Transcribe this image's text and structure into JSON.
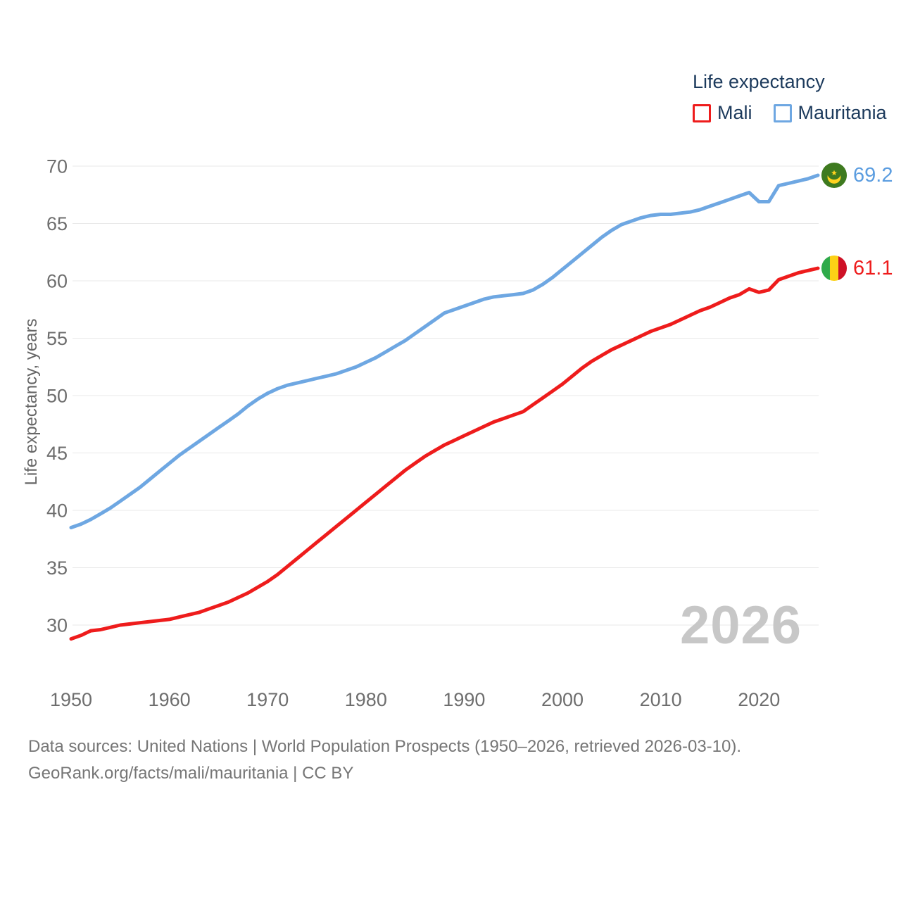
{
  "legend": {
    "title": "Life expectancy",
    "items": [
      {
        "label": "Mali",
        "color": "#ee1c1c"
      },
      {
        "label": "Mauritania",
        "color": "#6ea7e2"
      }
    ]
  },
  "watermark": "2026",
  "end_labels": [
    {
      "series": "Mauritania",
      "value": "69.2",
      "color": "#5b9de0",
      "flag_icon": "mauritania-flag-icon"
    },
    {
      "series": "Mali",
      "value": "61.1",
      "color": "#ee1c1c",
      "flag_icon": "mali-flag-icon"
    }
  ],
  "footer": {
    "line1": "Data sources: United Nations | World Population Prospects (1950–2026, retrieved 2026-03-10).",
    "line2": "GeoRank.org/facts/mali/mauritania | CC BY"
  },
  "flag_colors": {
    "mali": {
      "green": "#2faa4a",
      "yellow": "#fcd116",
      "red": "#ce1126"
    },
    "mauritania": {
      "green": "#3e7a1f",
      "gold": "#ffd21e"
    }
  },
  "chart_data": {
    "type": "line",
    "title": "Life expectancy",
    "xlabel": "",
    "ylabel": "Life expectancy, years",
    "x_years": {
      "start": 1950,
      "end": 2026,
      "step": 1
    },
    "xticks": [
      1950,
      1960,
      1970,
      1980,
      1990,
      2000,
      2010,
      2020
    ],
    "yticks": [
      30,
      35,
      40,
      45,
      50,
      55,
      60,
      65,
      70
    ],
    "ylim": [
      30,
      70
    ],
    "grid": "horizontal",
    "legend_position": "top-right",
    "series": [
      {
        "name": "Mauritania",
        "color": "#6ea7e2",
        "end_value": 69.2,
        "values": [
          38.5,
          38.8,
          39.2,
          39.7,
          40.2,
          40.8,
          41.4,
          42.0,
          42.7,
          43.4,
          44.1,
          44.8,
          45.4,
          46.0,
          46.6,
          47.2,
          47.8,
          48.4,
          49.1,
          49.7,
          50.2,
          50.6,
          50.9,
          51.1,
          51.3,
          51.5,
          51.7,
          51.9,
          52.2,
          52.5,
          52.9,
          53.3,
          53.8,
          54.3,
          54.8,
          55.4,
          56.0,
          56.6,
          57.2,
          57.5,
          57.8,
          58.1,
          58.4,
          58.6,
          58.7,
          58.8,
          58.9,
          59.2,
          59.7,
          60.3,
          61.0,
          61.7,
          62.4,
          63.1,
          63.8,
          64.4,
          64.9,
          65.2,
          65.5,
          65.7,
          65.8,
          65.8,
          65.9,
          66.0,
          66.2,
          66.5,
          66.8,
          67.1,
          67.4,
          67.7,
          66.9,
          66.9,
          68.3,
          68.5,
          68.7,
          68.9,
          69.2
        ]
      },
      {
        "name": "Mali",
        "color": "#ee1c1c",
        "end_value": 61.1,
        "values": [
          28.8,
          29.1,
          29.5,
          29.6,
          29.8,
          30.0,
          30.1,
          30.2,
          30.3,
          30.4,
          30.5,
          30.7,
          30.9,
          31.1,
          31.4,
          31.7,
          32.0,
          32.4,
          32.8,
          33.3,
          33.8,
          34.4,
          35.1,
          35.8,
          36.5,
          37.2,
          37.9,
          38.6,
          39.3,
          40.0,
          40.7,
          41.4,
          42.1,
          42.8,
          43.5,
          44.1,
          44.7,
          45.2,
          45.7,
          46.1,
          46.5,
          46.9,
          47.3,
          47.7,
          48.0,
          48.3,
          48.6,
          49.2,
          49.8,
          50.4,
          51.0,
          51.7,
          52.4,
          53.0,
          53.5,
          54.0,
          54.4,
          54.8,
          55.2,
          55.6,
          55.9,
          56.2,
          56.6,
          57.0,
          57.4,
          57.7,
          58.1,
          58.5,
          58.8,
          59.3,
          59.0,
          59.2,
          60.1,
          60.4,
          60.7,
          60.9,
          61.1
        ]
      }
    ]
  }
}
